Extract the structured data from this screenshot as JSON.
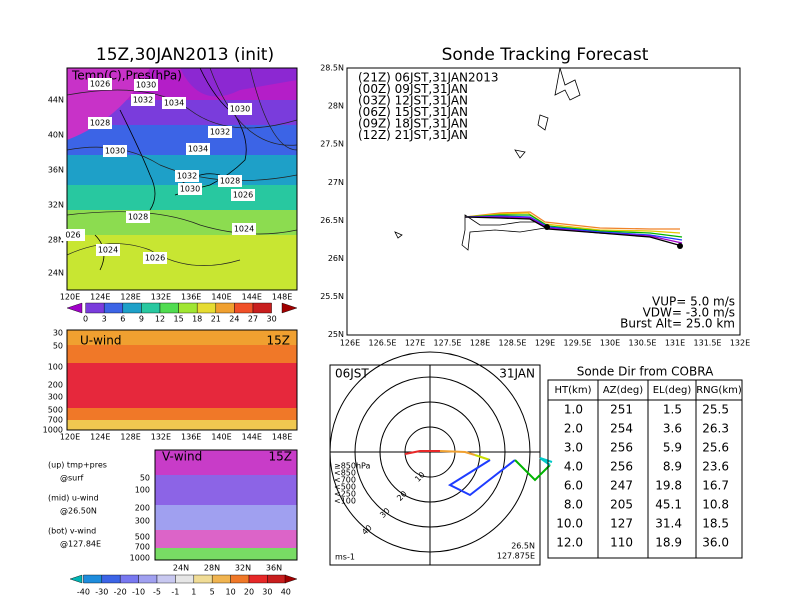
{
  "left_map": {
    "title": "15Z,30JAN2013 (init)",
    "label": "Temp(C),Pres(hPa)",
    "lat_labels": [
      "44N",
      "40N",
      "36N",
      "32N",
      "28N",
      "24N"
    ],
    "lon_labels": [
      "120E",
      "124E",
      "128E",
      "132E",
      "136E",
      "140E",
      "144E",
      "148E"
    ],
    "isobar_labels": [
      "1026",
      "1030",
      "1032",
      "1034",
      "1030",
      "1028",
      "1032",
      "1030",
      "1034",
      "1032",
      "1030",
      "1028",
      "1026",
      "1028",
      "1024",
      "026",
      "1024",
      "1026"
    ],
    "colorbar_labels": [
      "0",
      "3",
      "6",
      "9",
      "12",
      "15",
      "18",
      "21",
      "24",
      "27",
      "30"
    ]
  },
  "u_wind": {
    "title": "U-wind",
    "time": "15Z",
    "p_labels": [
      "30",
      "50",
      "100",
      "200",
      "300",
      "500",
      "700",
      "1000"
    ],
    "lon_labels": [
      "120E",
      "124E",
      "128E",
      "132E",
      "136E",
      "140E",
      "144E",
      "148E"
    ]
  },
  "v_wind": {
    "title": "V-wind",
    "time": "15Z",
    "p_labels": [
      "50",
      "100",
      "200",
      "300",
      "500",
      "700",
      "1000"
    ],
    "lat_labels": [
      "24N",
      "28N",
      "32N",
      "36N"
    ]
  },
  "notes": [
    "(up) tmp+pres",
    "@surf",
    "(mid) u-wind",
    "@26.50N",
    "(bot) v-wind",
    "@127.84E"
  ],
  "wind_colorbar_labels": [
    "-40",
    "-30",
    "-20",
    "-10",
    "-5",
    "-1",
    "1",
    "5",
    "10",
    "20",
    "30",
    "40"
  ],
  "track": {
    "title": "Sonde Tracking Forecast",
    "lat_labels": [
      "28.5N",
      "28N",
      "27.5N",
      "27N",
      "26.5N",
      "26N",
      "25.5N",
      "25N"
    ],
    "lon_labels": [
      "126E",
      "126.5E",
      "127E",
      "127.5E",
      "128E",
      "128.5E",
      "129E",
      "129.5E",
      "130E",
      "130.5E",
      "131E",
      "131.5E",
      "132E"
    ],
    "legend": [
      {
        "text": "(21Z)  06JST,31JAN2013",
        "color": "#000000"
      },
      {
        "text": "(00Z)  09JST,31JAN",
        "color": "#a000c8"
      },
      {
        "text": "(03Z)  12JST,31JAN",
        "color": "#1e3cff"
      },
      {
        "text": "(06Z)  15JST,31JAN",
        "color": "#00b400"
      },
      {
        "text": "(09Z)  18JST,31JAN",
        "color": "#e6c800"
      },
      {
        "text": "(12Z)  21JST,31JAN",
        "color": "#f08228"
      }
    ],
    "params": [
      "VUP=  5.0 m/s",
      "VDW= -3.0 m/s",
      "Burst Alt= 25.0 km"
    ]
  },
  "polar": {
    "time": "06JST",
    "date": "31JAN",
    "ring_labels": [
      "10",
      "20",
      "30",
      "40"
    ],
    "pressure_labels": [
      "≥850hPa",
      "<850",
      "<700",
      "<500",
      "<250",
      "<100"
    ],
    "unit": "ms-1",
    "position": [
      "26.5N",
      "127.875E"
    ]
  },
  "table": {
    "title": "Sonde Dir from COBRA",
    "header": [
      "HT(km)",
      "AZ(deg)",
      "EL(deg)",
      "RNG(km)"
    ],
    "rows": [
      [
        "1.0",
        "251",
        "1.5",
        "25.5"
      ],
      [
        "2.0",
        "254",
        "3.6",
        "26.3"
      ],
      [
        "3.0",
        "256",
        "5.9",
        "25.6"
      ],
      [
        "4.0",
        "256",
        "8.9",
        "23.6"
      ],
      [
        "6.0",
        "247",
        "19.8",
        "16.7"
      ],
      [
        "8.0",
        "205",
        "45.1",
        "10.8"
      ],
      [
        "10.0",
        "127",
        "31.4",
        "18.5"
      ],
      [
        "12.0",
        "110",
        "18.9",
        "36.0"
      ]
    ]
  }
}
